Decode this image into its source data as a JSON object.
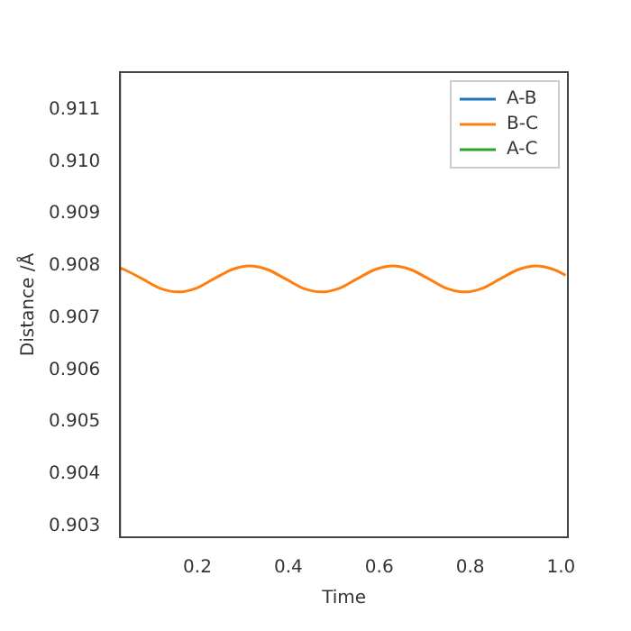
{
  "chart_data": {
    "type": "line",
    "xlabel": "Time",
    "ylabel": "Distance /Å",
    "x": [
      0.03,
      0.039,
      0.079,
      0.118,
      0.158,
      0.197,
      0.236,
      0.276,
      0.315,
      0.354,
      0.394,
      0.433,
      0.473,
      0.512,
      0.551,
      0.591,
      0.63,
      0.669,
      0.709,
      0.748,
      0.788,
      0.827,
      0.866,
      0.906,
      0.945,
      0.984,
      1.01
    ],
    "series": [
      {
        "name": "A-B",
        "color": "#1f77b4",
        "values": [
          null,
          null,
          null,
          null,
          null,
          null,
          null,
          null,
          null,
          null,
          null,
          null,
          null,
          null,
          null,
          null,
          null,
          null,
          null,
          null,
          null,
          null,
          null,
          null,
          null,
          null,
          null
        ]
      },
      {
        "name": "B-C",
        "color": "#ff7f0e",
        "values": [
          0.90796,
          0.90793,
          0.90775,
          0.90757,
          0.9075,
          0.90757,
          0.90775,
          0.90793,
          0.908,
          0.90793,
          0.90775,
          0.90757,
          0.9075,
          0.90757,
          0.90775,
          0.90793,
          0.908,
          0.90793,
          0.90775,
          0.90757,
          0.9075,
          0.90757,
          0.90775,
          0.90793,
          0.908,
          0.90793,
          0.90782
        ]
      },
      {
        "name": "A-C",
        "color": "#2ca02c",
        "values": [
          null,
          null,
          null,
          null,
          null,
          null,
          null,
          null,
          null,
          null,
          null,
          null,
          null,
          null,
          null,
          null,
          null,
          null,
          null,
          null,
          null,
          null,
          null,
          null,
          null,
          null,
          null
        ]
      }
    ],
    "xlim": [
      0.03,
      1.015
    ],
    "xticks": [
      0.2,
      0.4,
      0.6,
      0.8,
      {
        "value": 1,
        "label": "1.0"
      }
    ],
    "ylim": [
      0.90279,
      0.91172
    ],
    "yticks": [
      0.903,
      0.904,
      0.905,
      0.906,
      0.907,
      0.908,
      0.909,
      {
        "value": 0.91,
        "label": "0.910"
      },
      0.911
    ],
    "grid": false,
    "legend": "top right",
    "marker": "none",
    "line_style": "solid"
  }
}
